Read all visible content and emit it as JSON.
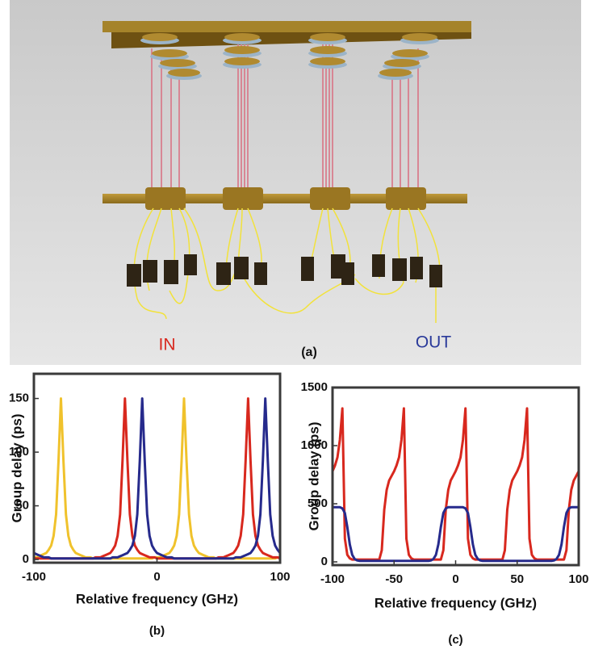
{
  "figure": {
    "panel_label": "(a)",
    "in_label": "IN",
    "out_label": "OUT"
  },
  "chart_data": [
    {
      "type": "line",
      "caption": "(b)",
      "x_label": "Relative frequency (GHz)",
      "y_label": "Group delay (ps)",
      "xlim": [
        -100,
        100
      ],
      "xticks": [
        -100,
        0,
        100
      ],
      "ylim": [
        -3,
        173
      ],
      "yticks": [
        0,
        50,
        100,
        150
      ],
      "x": [
        -100,
        -98,
        -96,
        -94,
        -92,
        -90,
        -88,
        -86,
        -84,
        -82,
        -80,
        -78,
        -76,
        -74,
        -72,
        -70,
        -68,
        -66,
        -64,
        -62,
        -60,
        -58,
        -56,
        -54,
        -52,
        -50,
        -48,
        -46,
        -44,
        -42,
        -40,
        -38,
        -36,
        -34,
        -32,
        -30,
        -28,
        -26,
        -24,
        -22,
        -20,
        -18,
        -16,
        -14,
        -12,
        -10,
        -8,
        -6,
        -4,
        -2,
        0,
        2,
        4,
        6,
        8,
        10,
        12,
        14,
        16,
        18,
        20,
        22,
        24,
        26,
        28,
        30,
        32,
        34,
        36,
        38,
        40,
        42,
        44,
        46,
        48,
        50,
        52,
        54,
        56,
        58,
        60,
        62,
        64,
        66,
        68,
        70,
        72,
        74,
        76,
        78,
        80,
        82,
        84,
        86,
        88,
        90,
        92,
        94,
        96,
        98,
        100
      ],
      "series": [
        {
          "color": "#f0c22c",
          "values": [
            2,
            2,
            3,
            4,
            5,
            6,
            9,
            13,
            22,
            42,
            92,
            150,
            92,
            42,
            22,
            13,
            9,
            6,
            5,
            4,
            3,
            2,
            2,
            2,
            1,
            1,
            1,
            1,
            1,
            1,
            1,
            1,
            1,
            1,
            1,
            1,
            1,
            1,
            1,
            1,
            1,
            1,
            1,
            1,
            1,
            1,
            1,
            1,
            1,
            2,
            2,
            2,
            3,
            4,
            5,
            6,
            9,
            13,
            22,
            42,
            92,
            150,
            92,
            42,
            22,
            13,
            9,
            6,
            5,
            4,
            3,
            2,
            2,
            2,
            1,
            1,
            1,
            1,
            1,
            1,
            1,
            1,
            1,
            1,
            1,
            1,
            1,
            1,
            1,
            1,
            1,
            1,
            1,
            1,
            1,
            1,
            1,
            1,
            1,
            2,
            2
          ]
        },
        {
          "color": "#d8281e",
          "values": [
            1,
            1,
            1,
            1,
            1,
            1,
            1,
            1,
            1,
            1,
            1,
            1,
            1,
            1,
            1,
            1,
            1,
            1,
            1,
            1,
            1,
            1,
            1,
            1,
            1,
            2,
            2,
            2,
            3,
            4,
            5,
            6,
            9,
            13,
            22,
            42,
            92,
            150,
            92,
            42,
            22,
            13,
            9,
            6,
            5,
            4,
            3,
            2,
            2,
            2,
            1,
            1,
            1,
            1,
            1,
            1,
            1,
            1,
            1,
            1,
            1,
            1,
            1,
            1,
            1,
            1,
            1,
            1,
            1,
            1,
            1,
            1,
            1,
            1,
            1,
            2,
            2,
            2,
            3,
            4,
            5,
            6,
            9,
            13,
            22,
            42,
            92,
            150,
            92,
            42,
            22,
            13,
            9,
            6,
            5,
            4,
            3,
            2,
            2,
            2,
            1
          ]
        },
        {
          "color": "#262a8c",
          "values": [
            6,
            5,
            4,
            3,
            2,
            2,
            2,
            1,
            1,
            1,
            1,
            1,
            1,
            1,
            1,
            1,
            1,
            1,
            1,
            1,
            1,
            1,
            1,
            1,
            1,
            1,
            1,
            1,
            1,
            1,
            1,
            1,
            2,
            2,
            2,
            3,
            4,
            5,
            6,
            9,
            13,
            22,
            42,
            92,
            150,
            92,
            42,
            22,
            13,
            9,
            6,
            5,
            4,
            3,
            2,
            2,
            2,
            1,
            1,
            1,
            1,
            1,
            1,
            1,
            1,
            1,
            1,
            1,
            1,
            1,
            1,
            1,
            1,
            1,
            1,
            1,
            1,
            1,
            1,
            1,
            1,
            1,
            2,
            2,
            2,
            3,
            4,
            5,
            6,
            9,
            13,
            22,
            42,
            92,
            150,
            92,
            42,
            22,
            13,
            9,
            6
          ]
        }
      ]
    },
    {
      "type": "line",
      "caption": "(c)",
      "x_label": "Relative frequency (GHz)",
      "y_label": "Group delay (ps)",
      "xlim": [
        -100,
        100
      ],
      "xticks": [
        -100,
        -50,
        0,
        50,
        100
      ],
      "ylim": [
        -28,
        1500
      ],
      "yticks": [
        0,
        500,
        1000,
        1500
      ],
      "x": [
        -100,
        -98,
        -96,
        -94,
        -92,
        -90,
        -88,
        -86,
        -84,
        -82,
        -80,
        -78,
        -76,
        -74,
        -72,
        -70,
        -68,
        -66,
        -64,
        -62,
        -60,
        -58,
        -56,
        -54,
        -52,
        -50,
        -48,
        -46,
        -44,
        -42,
        -40,
        -38,
        -36,
        -34,
        -32,
        -30,
        -28,
        -26,
        -24,
        -22,
        -20,
        -18,
        -16,
        -14,
        -12,
        -10,
        -8,
        -6,
        -4,
        -2,
        0,
        2,
        4,
        6,
        8,
        10,
        12,
        14,
        16,
        18,
        20,
        22,
        24,
        26,
        28,
        30,
        32,
        34,
        36,
        38,
        40,
        42,
        44,
        46,
        48,
        50,
        52,
        54,
        56,
        58,
        60,
        62,
        64,
        66,
        68,
        70,
        72,
        74,
        76,
        78,
        80,
        82,
        84,
        86,
        88,
        90,
        92,
        94,
        96,
        98,
        100
      ],
      "series": [
        {
          "color": "#d8281e",
          "values": [
            780,
            830,
            900,
            1050,
            1320,
            200,
            60,
            30,
            20,
            20,
            20,
            20,
            20,
            20,
            20,
            20,
            20,
            20,
            20,
            20,
            100,
            450,
            620,
            700,
            740,
            780,
            830,
            900,
            1050,
            1320,
            200,
            60,
            30,
            20,
            20,
            20,
            20,
            20,
            20,
            20,
            20,
            20,
            20,
            20,
            20,
            100,
            450,
            620,
            700,
            740,
            780,
            830,
            900,
            1050,
            1320,
            200,
            60,
            30,
            20,
            20,
            20,
            20,
            20,
            20,
            20,
            20,
            20,
            20,
            20,
            20,
            100,
            450,
            620,
            700,
            740,
            780,
            830,
            900,
            1050,
            1320,
            200,
            60,
            30,
            20,
            20,
            20,
            20,
            20,
            20,
            20,
            20,
            20,
            20,
            20,
            20,
            100,
            450,
            620,
            700,
            740,
            780
          ]
        },
        {
          "color": "#262a8c",
          "values": [
            470,
            470,
            470,
            470,
            460,
            420,
            300,
            150,
            60,
            25,
            12,
            8,
            8,
            8,
            8,
            8,
            8,
            8,
            8,
            8,
            8,
            8,
            8,
            8,
            8,
            8,
            8,
            8,
            8,
            8,
            8,
            8,
            8,
            8,
            8,
            8,
            8,
            8,
            8,
            8,
            12,
            25,
            60,
            150,
            300,
            420,
            460,
            470,
            470,
            470,
            470,
            470,
            470,
            470,
            460,
            420,
            300,
            150,
            60,
            25,
            12,
            8,
            8,
            8,
            8,
            8,
            8,
            8,
            8,
            8,
            8,
            8,
            8,
            8,
            8,
            8,
            8,
            8,
            8,
            8,
            8,
            8,
            8,
            8,
            8,
            8,
            8,
            8,
            8,
            8,
            12,
            25,
            60,
            150,
            300,
            420,
            460,
            470,
            470,
            470,
            470
          ]
        }
      ]
    }
  ]
}
